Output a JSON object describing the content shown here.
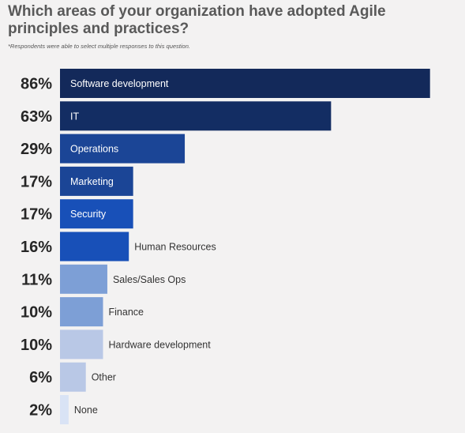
{
  "title": "Which areas of your organization have adopted Agile principles and practices?",
  "subtitle": "*Respondents were able to select multiple responses to this question.",
  "chart_data": {
    "type": "bar",
    "orientation": "horizontal",
    "categories": [
      "Software development",
      "IT",
      "Operations",
      "Marketing",
      "Security",
      "Human Resources",
      "Sales/Sales Ops",
      "Finance",
      "Hardware development",
      "Other",
      "None"
    ],
    "values": [
      86,
      63,
      29,
      17,
      17,
      16,
      11,
      10,
      10,
      6,
      2
    ],
    "value_labels": [
      "86%",
      "63%",
      "29%",
      "17%",
      "17%",
      "16%",
      "11%",
      "10%",
      "10%",
      "6%",
      "2%"
    ],
    "label_inside": [
      true,
      true,
      true,
      true,
      true,
      false,
      false,
      false,
      false,
      false,
      false
    ],
    "colors": [
      "#13295a",
      "#132d63",
      "#1b4596",
      "#1b4596",
      "#1850b8",
      "#1850b8",
      "#7d9fd6",
      "#7d9fd6",
      "#b9c8e6",
      "#b9c8e6",
      "#d9e3f5"
    ],
    "title": "Which areas of your organization have adopted Agile principles and practices?",
    "xlabel": "",
    "ylabel": "",
    "xlim": [
      0,
      100
    ],
    "grid": false,
    "legend": "none"
  }
}
